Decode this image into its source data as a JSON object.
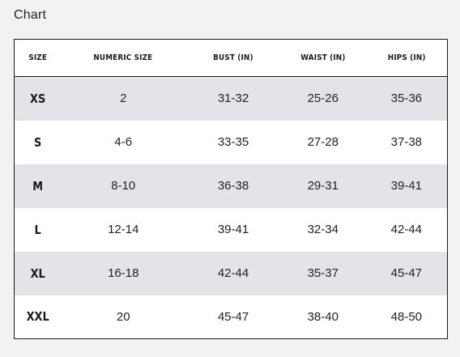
{
  "title": "Chart",
  "table": {
    "headers": [
      "SIZE",
      "NUMERIC SIZE",
      "BUST (IN)",
      "WAIST (IN)",
      "HIPS (IN)"
    ],
    "rows": [
      [
        "XS",
        "2",
        "31-32",
        "25-26",
        "35-36"
      ],
      [
        "S",
        "4-6",
        "33-35",
        "27-28",
        "37-38"
      ],
      [
        "M",
        "8-10",
        "36-38",
        "29-31",
        "39-41"
      ],
      [
        "L",
        "12-14",
        "39-41",
        "32-34",
        "42-44"
      ],
      [
        "XL",
        "16-18",
        "42-44",
        "35-37",
        "45-47"
      ],
      [
        "XXL",
        "20",
        "45-47",
        "38-40",
        "48-50"
      ]
    ]
  }
}
